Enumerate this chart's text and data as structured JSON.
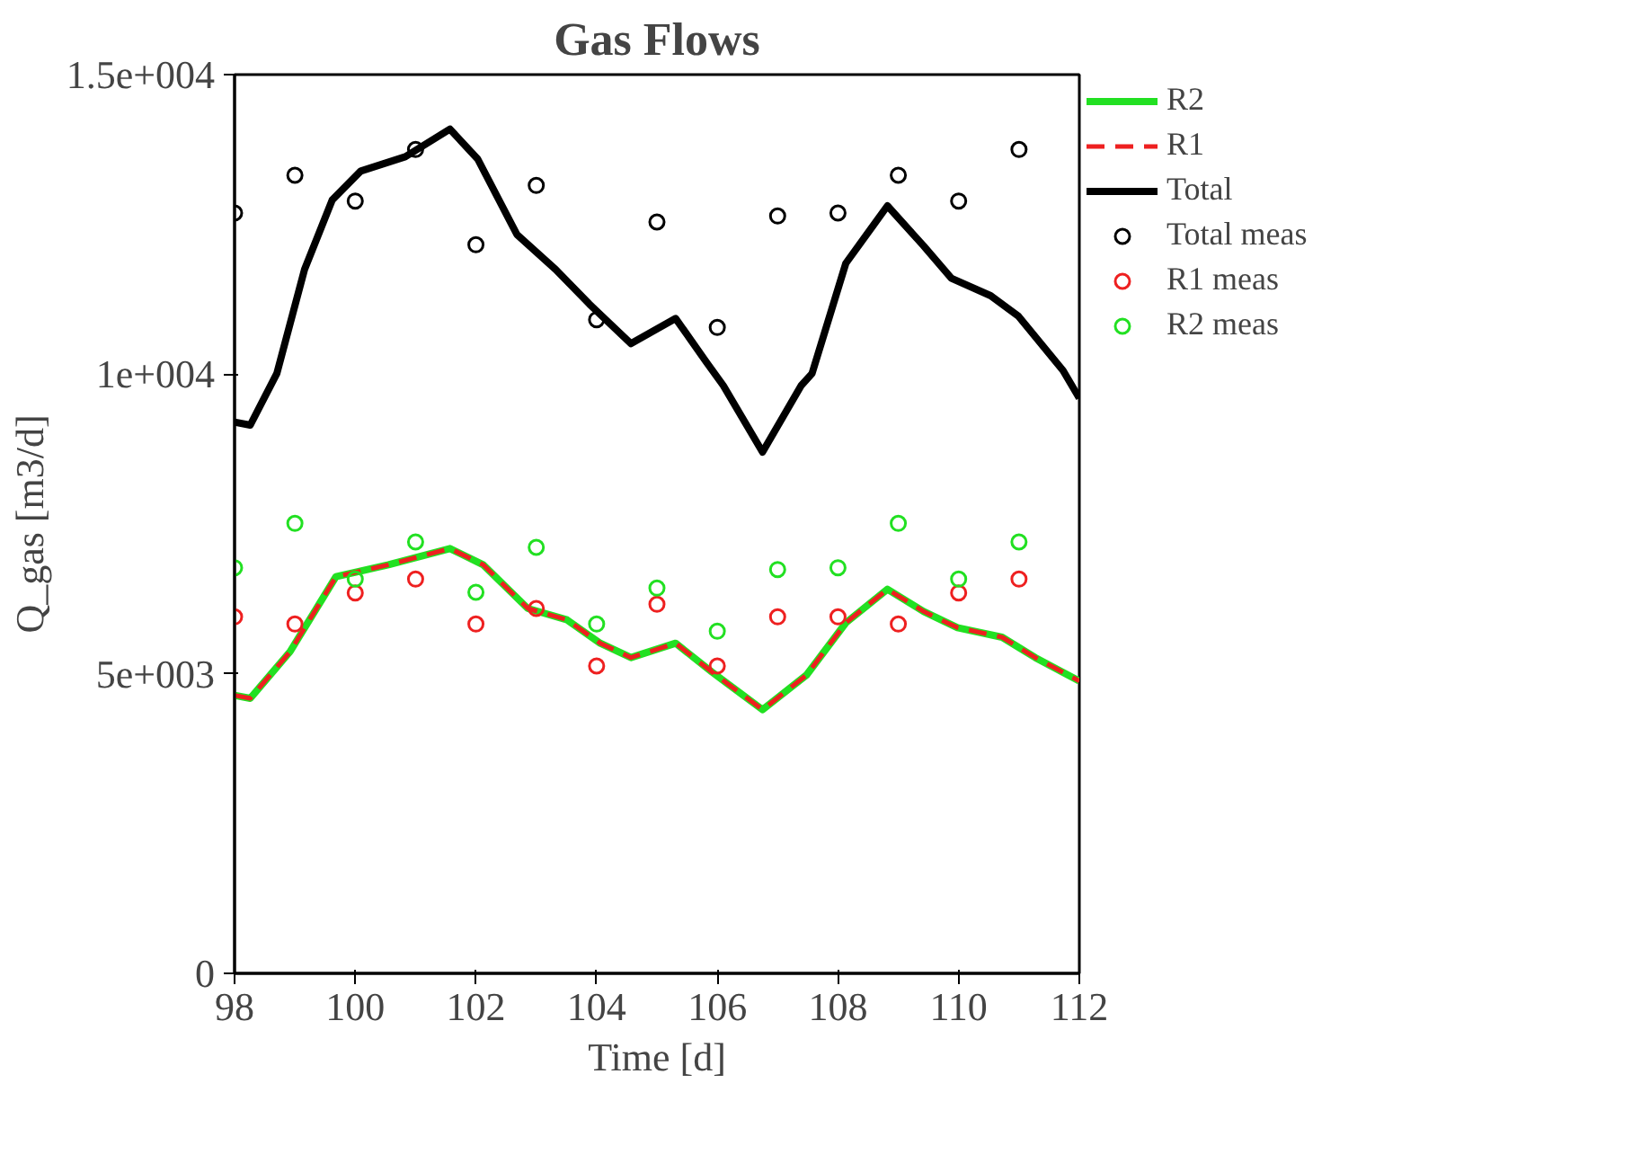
{
  "chart_data": {
    "type": "line",
    "title": "Gas Flows",
    "xlabel": "Time [d]",
    "ylabel": "Q_gas [m3/d]",
    "xlim": [
      98,
      112
    ],
    "ylim": [
      0,
      15000
    ],
    "xticks": [
      98,
      100,
      102,
      104,
      106,
      108,
      110,
      112
    ],
    "yticks": [
      0,
      {
        "value": 5000,
        "label": "5e+003"
      },
      {
        "value": 10000,
        "label": "1e+004"
      },
      {
        "value": 15000,
        "label": "1.5e+004"
      }
    ],
    "grid": false,
    "legend": "right",
    "series": [
      {
        "name": "R2",
        "color": "#22e022",
        "line_style": "solid",
        "x": [
          98,
          98.26,
          98.92,
          99.68,
          100.55,
          101.57,
          102.12,
          102.86,
          103.51,
          104.06,
          104.57,
          105.31,
          105.91,
          106.75,
          107.48,
          108.13,
          108.82,
          109.42,
          109.98,
          110.72,
          111.27,
          112
        ],
        "values": [
          4640,
          4590,
          5370,
          6620,
          6820,
          7090,
          6820,
          6090,
          5900,
          5510,
          5270,
          5510,
          5030,
          4400,
          4980,
          5850,
          6410,
          6040,
          5770,
          5610,
          5270,
          4880
        ]
      },
      {
        "name": "R1",
        "color": "#ee2020",
        "line_style": "dashed",
        "x": [
          98,
          98.26,
          98.92,
          99.68,
          100.55,
          101.57,
          102.12,
          102.86,
          103.51,
          104.06,
          104.57,
          105.31,
          105.91,
          106.75,
          107.48,
          108.13,
          108.82,
          109.42,
          109.98,
          110.72,
          111.27,
          112
        ],
        "values": [
          4640,
          4590,
          5370,
          6620,
          6820,
          7090,
          6820,
          6090,
          5900,
          5510,
          5270,
          5510,
          5030,
          4400,
          4980,
          5850,
          6410,
          6040,
          5770,
          5610,
          5270,
          4880
        ]
      },
      {
        "name": "Total",
        "color": "#000000",
        "line_style": "solid",
        "x": [
          98,
          98.26,
          98.7,
          99.16,
          99.62,
          100.09,
          100.83,
          101.57,
          102.03,
          102.68,
          103.32,
          103.88,
          104.57,
          105.31,
          105.82,
          106.1,
          106.75,
          107.39,
          107.57,
          108.13,
          108.82,
          109.42,
          109.88,
          110.53,
          110.99,
          111.73,
          112
        ],
        "values": [
          9200,
          9150,
          10010,
          11750,
          12910,
          13390,
          13630,
          14090,
          13590,
          12330,
          11750,
          11170,
          10510,
          10930,
          10200,
          9810,
          8700,
          9810,
          10010,
          11850,
          12810,
          12140,
          11600,
          11310,
          10970,
          10060,
          9600
        ]
      },
      {
        "name": "Total meas",
        "color": "#000000",
        "type": "scatter",
        "marker": "circle",
        "x": [
          98,
          99,
          100,
          101,
          102,
          103,
          104,
          105,
          106,
          107,
          108,
          109,
          110,
          111
        ],
        "values": [
          12690,
          13320,
          12890,
          13750,
          12160,
          13150,
          10910,
          12540,
          10780,
          12640,
          12690,
          13320,
          12890,
          13750
        ]
      },
      {
        "name": "R1 meas",
        "color": "#ee2020",
        "type": "scatter",
        "marker": "circle",
        "x": [
          98,
          99,
          100,
          101,
          102,
          103,
          104,
          105,
          106,
          107,
          108,
          109,
          110,
          111
        ],
        "values": [
          5950,
          5830,
          6350,
          6580,
          5830,
          6090,
          5130,
          6160,
          5130,
          5950,
          5950,
          5830,
          6350,
          6580
        ]
      },
      {
        "name": "R2 meas",
        "color": "#22e022",
        "type": "scatter",
        "marker": "circle",
        "x": [
          98,
          99,
          100,
          101,
          102,
          103,
          104,
          105,
          106,
          107,
          108,
          109,
          110,
          111
        ],
        "values": [
          6770,
          7510,
          6580,
          7200,
          6360,
          7110,
          5830,
          6430,
          5710,
          6740,
          6770,
          7510,
          6580,
          7200
        ]
      }
    ]
  }
}
